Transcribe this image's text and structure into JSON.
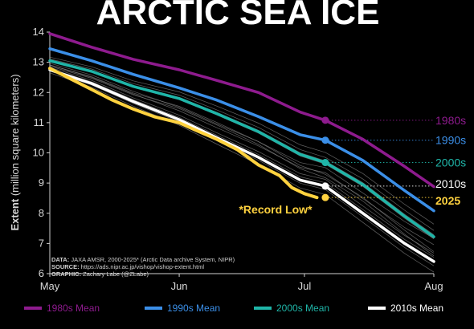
{
  "title": "ARCTIC SEA ICE",
  "annotation": "*Record Low*",
  "source_lines": [
    {
      "label": "DATA:",
      "text": "JAXA AMSR, 2000-2025* (Arctic Data archive System, NIPR)"
    },
    {
      "label": "SOURCE:",
      "text": "https://ads.nipr.ac.jp/vishop/vishop-extent.html"
    },
    {
      "label": "GRAPHIC:",
      "text": "Zachary Labe (@ZLabe)"
    }
  ],
  "chart_data": {
    "type": "line",
    "ylabel_bold": "Extent",
    "ylabel_rest": "(million square kilometers)",
    "ylim": [
      6,
      14
    ],
    "yticks": [
      6,
      7,
      8,
      9,
      10,
      11,
      12,
      13,
      14
    ],
    "xlim_days": [
      0,
      92
    ],
    "xticks": [
      {
        "label": "May",
        "day": 0
      },
      {
        "label": "Jun",
        "day": 31
      },
      {
        "label": "Jul",
        "day": 61
      },
      {
        "label": "Aug",
        "day": 92
      }
    ],
    "grid": false,
    "legend_position": "bottom",
    "reference_date_day": 66,
    "series": [
      {
        "name": "1980s Mean",
        "end_label": "1980s",
        "color": "#8e1b8e",
        "points": [
          [
            0,
            13.95
          ],
          [
            10,
            13.5
          ],
          [
            20,
            13.1
          ],
          [
            31,
            12.75
          ],
          [
            40,
            12.4
          ],
          [
            50,
            12.0
          ],
          [
            60,
            11.35
          ],
          [
            66,
            11.08
          ],
          [
            75,
            10.45
          ],
          [
            85,
            9.55
          ],
          [
            92,
            8.88
          ]
        ]
      },
      {
        "name": "1990s Mean",
        "end_label": "1990s",
        "color": "#3b8fe8",
        "points": [
          [
            0,
            13.45
          ],
          [
            10,
            13.05
          ],
          [
            20,
            12.6
          ],
          [
            31,
            12.15
          ],
          [
            40,
            11.75
          ],
          [
            50,
            11.2
          ],
          [
            60,
            10.6
          ],
          [
            66,
            10.42
          ],
          [
            75,
            9.75
          ],
          [
            85,
            8.75
          ],
          [
            92,
            8.08
          ]
        ]
      },
      {
        "name": "2000s Mean",
        "end_label": "2000s",
        "color": "#1fb5a8",
        "points": [
          [
            0,
            13.05
          ],
          [
            10,
            12.7
          ],
          [
            20,
            12.2
          ],
          [
            31,
            11.8
          ],
          [
            40,
            11.3
          ],
          [
            50,
            10.7
          ],
          [
            60,
            9.95
          ],
          [
            66,
            9.68
          ],
          [
            75,
            8.95
          ],
          [
            85,
            7.9
          ],
          [
            92,
            7.22
          ]
        ]
      },
      {
        "name": "2010s Mean",
        "end_label": "2010s",
        "color": "#ffffff",
        "points": [
          [
            0,
            12.75
          ],
          [
            10,
            12.3
          ],
          [
            20,
            11.7
          ],
          [
            31,
            11.1
          ],
          [
            40,
            10.5
          ],
          [
            50,
            9.85
          ],
          [
            60,
            9.1
          ],
          [
            66,
            8.9
          ],
          [
            75,
            8.0
          ],
          [
            85,
            7.0
          ],
          [
            92,
            6.4
          ]
        ]
      },
      {
        "name": "2025",
        "end_label": "2025",
        "color": "#ffd23f",
        "points": [
          [
            0,
            12.8
          ],
          [
            5,
            12.45
          ],
          [
            10,
            12.1
          ],
          [
            15,
            11.75
          ],
          [
            20,
            11.45
          ],
          [
            25,
            11.2
          ],
          [
            31,
            11.0
          ],
          [
            35,
            10.75
          ],
          [
            40,
            10.45
          ],
          [
            45,
            10.1
          ],
          [
            50,
            9.6
          ],
          [
            55,
            9.25
          ],
          [
            58,
            8.85
          ],
          [
            61,
            8.65
          ],
          [
            64,
            8.52
          ]
        ]
      }
    ],
    "end_markers": [
      {
        "series": "1980s Mean",
        "day": 66,
        "value": 11.08,
        "label": "1980s"
      },
      {
        "series": "1990s Mean",
        "day": 66,
        "value": 10.42,
        "label": "1990s"
      },
      {
        "series": "2000s Mean",
        "day": 66,
        "value": 9.68,
        "label": "2000s"
      },
      {
        "series": "2010s Mean",
        "day": 66,
        "value": 8.9,
        "label": "2010s"
      },
      {
        "series": "2025",
        "day": 66,
        "value": 8.52,
        "label": "2025"
      }
    ],
    "background_years": [
      {
        "offset": 0.15
      },
      {
        "offset": -0.1
      },
      {
        "offset": 0.3
      },
      {
        "offset": -0.25
      },
      {
        "offset": 0.05
      },
      {
        "offset": 0.4
      },
      {
        "offset": -0.35
      },
      {
        "offset": 0.2
      },
      {
        "offset": -0.05
      },
      {
        "offset": 0.55
      },
      {
        "offset": -0.45
      },
      {
        "offset": 0.1
      }
    ]
  }
}
